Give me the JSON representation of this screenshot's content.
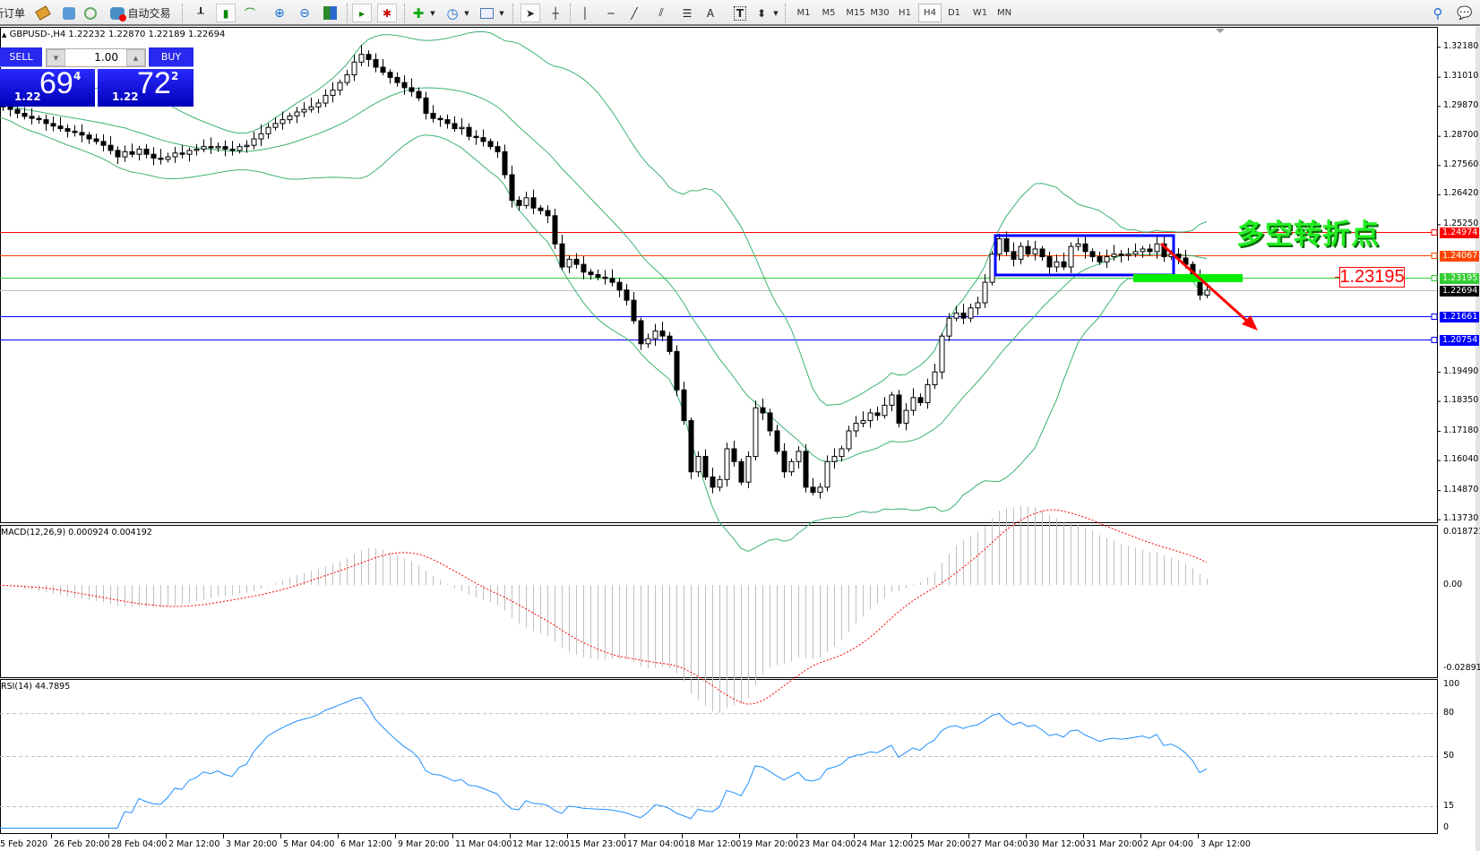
{
  "toolbar": {
    "new_order": "新订单",
    "autotrading": "自动交易",
    "timeframes": [
      "M1",
      "M5",
      "M15",
      "M30",
      "H1",
      "H4",
      "D1",
      "W1",
      "MN"
    ],
    "active_timeframe": "H4",
    "text_tool": "A",
    "label_tool": "T"
  },
  "chart": {
    "header": "GBPUSD-,H4  1.22232 1.22870 1.22189 1.22694",
    "macd_title": "MACD(12,26,9) 0.000924 0.004192",
    "rsi_title": "RSI(14) 44.7895",
    "annotation_text": "多空转折点",
    "annotation_price": "1.23195"
  },
  "trade_panel": {
    "sell_label": "SELL",
    "buy_label": "BUY",
    "lots": "1.00",
    "bid": {
      "prefix": "1.22",
      "big": "69",
      "sup": "4"
    },
    "ask": {
      "prefix": "1.22",
      "big": "72",
      "sup": "2"
    }
  },
  "colors": {
    "bollinger": "#3cb371",
    "rsi": "#1e90ff",
    "macd_hist": "#c0c0c0",
    "macd_signal": "#ff0000",
    "box": "#0000ff",
    "arrow": "#ff0000",
    "zone": "#00ee00"
  },
  "chart_data": {
    "type": "candlestick",
    "symbol": "GBPUSD-",
    "timeframe": "H4",
    "price_axis": {
      "ticks": [
        "1.32180",
        "1.31010",
        "1.29870",
        "1.28700",
        "1.27560",
        "1.26420",
        "1.25250",
        "1.19490",
        "1.18350",
        "1.17180",
        "1.16040",
        "1.14870",
        "1.13730"
      ],
      "range": [
        1.1373,
        1.3218
      ]
    },
    "time_axis": [
      "5 Feb 2020",
      "26 Feb 20:00",
      "28 Feb 04:00",
      "2 Mar 12:00",
      "3 Mar 20:00",
      "5 Mar 04:00",
      "6 Mar 12:00",
      "9 Mar 20:00",
      "11 Mar 04:00",
      "12 Mar 12:00",
      "15 Mar 23:00",
      "17 Mar 04:00",
      "18 Mar 12:00",
      "19 Mar 20:00",
      "23 Mar 04:00",
      "24 Mar 12:00",
      "25 Mar 20:00",
      "27 Mar 04:00",
      "30 Mar 12:00",
      "31 Mar 20:00",
      "2 Apr 04:00",
      "3 Apr 12:00"
    ],
    "closes": [
      1.2997,
      1.299,
      1.2985,
      1.2975,
      1.296,
      1.2948,
      1.294,
      1.2935,
      1.292,
      1.291,
      1.29,
      1.289,
      1.2885,
      1.2875,
      1.286,
      1.285,
      1.2835,
      1.2815,
      1.279,
      1.281,
      1.28,
      1.282,
      1.28,
      1.2785,
      1.278,
      1.279,
      1.2805,
      1.28,
      1.2815,
      1.282,
      1.283,
      1.2825,
      1.283,
      1.282,
      1.2815,
      1.283,
      1.2835,
      1.286,
      1.288,
      1.2905,
      1.292,
      1.2935,
      1.295,
      1.2965,
      1.2975,
      1.2985,
      1.3,
      1.303,
      1.305,
      1.308,
      1.311,
      1.316,
      1.319,
      1.317,
      1.314,
      1.312,
      1.31,
      1.308,
      1.306,
      1.3045,
      1.302,
      1.296,
      1.294,
      1.2935,
      1.292,
      1.29,
      1.2905,
      1.287,
      1.2865,
      1.285,
      1.283,
      1.281,
      1.272,
      1.262,
      1.26,
      1.263,
      1.259,
      1.258,
      1.256,
      1.245,
      1.236,
      1.239,
      1.237,
      1.234,
      1.233,
      1.232,
      1.2315,
      1.23,
      1.227,
      1.223,
      1.215,
      1.206,
      1.208,
      1.211,
      1.209,
      1.203,
      1.188,
      1.176,
      1.156,
      1.162,
      1.154,
      1.15,
      1.153,
      1.165,
      1.16,
      1.152,
      1.162,
      1.181,
      1.179,
      1.172,
      1.164,
      1.156,
      1.16,
      1.164,
      1.15,
      1.148,
      1.15,
      1.16,
      1.162,
      1.165,
      1.172,
      1.175,
      1.176,
      1.179,
      1.178,
      1.182,
      1.186,
      1.175,
      1.18,
      1.185,
      1.183,
      1.19,
      1.195,
      1.209,
      1.216,
      1.218,
      1.216,
      1.22,
      1.222,
      1.23,
      1.241,
      1.247,
      1.242,
      1.239,
      1.244,
      1.241,
      1.243,
      1.24,
      1.236,
      1.238,
      1.236,
      1.244,
      1.245,
      1.242,
      1.24,
      1.238,
      1.24,
      1.241,
      1.2405,
      1.241,
      1.242,
      1.243,
      1.242,
      1.245,
      1.24,
      1.241,
      1.2395,
      1.237,
      1.233,
      1.225,
      1.2269
    ],
    "horizontal_lines": [
      {
        "price": "1.24974",
        "color": "#ff0000"
      },
      {
        "price": "1.24067",
        "color": "#ff4500"
      },
      {
        "price": "1.23195",
        "color": "#32cd32"
      },
      {
        "price": "1.22694",
        "color": "#000000",
        "line_color": "#c0c0c0"
      },
      {
        "price": "1.21661",
        "color": "#0000ff"
      },
      {
        "price": "1.20754",
        "color": "#0000ff"
      }
    ],
    "indicators": {
      "bollinger": "Bollinger Bands (20, 2)",
      "macd": {
        "ticks": [
          "0.018721",
          "0.00",
          "-0.028913"
        ],
        "range": [
          -0.028913,
          0.018721
        ]
      },
      "rsi": {
        "ticks": [
          "100",
          "80",
          "50",
          "15",
          "0"
        ],
        "levels": [
          80,
          50,
          15
        ]
      }
    }
  }
}
